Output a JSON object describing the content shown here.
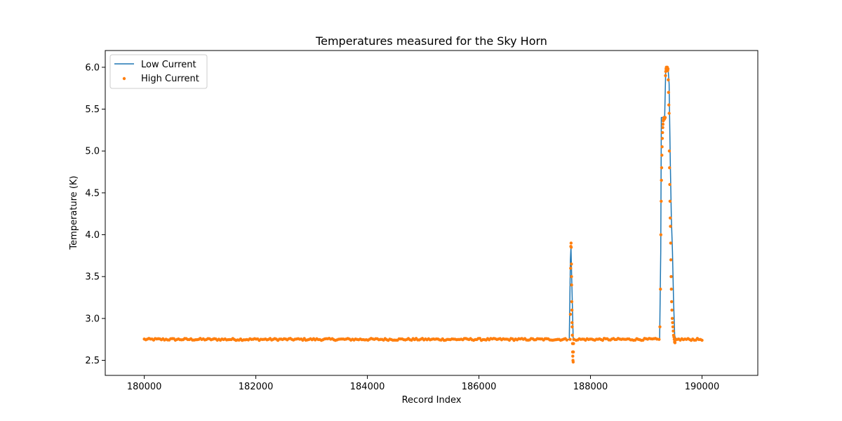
{
  "chart_data": {
    "type": "line",
    "title": "Temperatures measured for the Sky Horn",
    "xlabel": "Record Index",
    "ylabel": "Temperature (K)",
    "xlim": [
      179300,
      191000
    ],
    "ylim": [
      2.32,
      6.2
    ],
    "xticks": [
      180000,
      182000,
      184000,
      186000,
      188000,
      190000
    ],
    "yticks": [
      2.5,
      3.0,
      3.5,
      4.0,
      4.5,
      5.0,
      5.5,
      6.0
    ],
    "xtick_labels": [
      "180000",
      "182000",
      "184000",
      "186000",
      "188000",
      "190000"
    ],
    "ytick_labels": [
      "2.5",
      "3.0",
      "3.5",
      "4.0",
      "4.5",
      "5.0",
      "5.5",
      "6.0"
    ],
    "grid": false,
    "legend_position": "top-left",
    "series": [
      {
        "name": "Low Current",
        "kind": "line",
        "color": "#1f77b4",
        "x": [
          180000,
          187620,
          187640,
          187650,
          187670,
          187690,
          187700,
          189240,
          189260,
          189270,
          189290,
          189330,
          189350,
          189370,
          189390,
          189410,
          189430,
          189450,
          189470,
          189490,
          189510,
          189530,
          190000
        ],
        "y": [
          2.75,
          2.75,
          3.7,
          3.85,
          3.3,
          2.75,
          2.75,
          2.75,
          3.8,
          5.4,
          5.4,
          5.4,
          6.0,
          6.0,
          6.0,
          5.8,
          4.9,
          4.2,
          3.8,
          3.2,
          2.8,
          2.75,
          2.75
        ]
      },
      {
        "name": "High Current",
        "kind": "scatter",
        "color": "#ff7f0e",
        "marker_radius": 2.2,
        "baseline": {
          "x_start": 180000,
          "x_end": 190000,
          "y": 2.75,
          "count": 360,
          "jitter": 0.012
        },
        "x": [
          187635,
          187640,
          187645,
          187648,
          187652,
          187655,
          187658,
          187660,
          187662,
          187665,
          187668,
          187670,
          187672,
          187675,
          187678,
          187680,
          187683,
          187686,
          187690,
          187693,
          187696,
          187700,
          187705,
          189230,
          189245,
          189255,
          189262,
          189268,
          189272,
          189276,
          189280,
          189284,
          189288,
          189292,
          189296,
          189300,
          189305,
          189310,
          189318,
          189325,
          189332,
          189340,
          189345,
          189350,
          189355,
          189360,
          189366,
          189372,
          189378,
          189384,
          189390,
          189395,
          189400,
          189405,
          189410,
          189414,
          189418,
          189422,
          189426,
          189430,
          189434,
          189438,
          189442,
          189446,
          189450,
          189455,
          189460,
          189466,
          189472,
          189478,
          189484,
          189490,
          189496,
          189502,
          189508,
          189515,
          189522,
          189530,
          189540,
          189560
        ],
        "y": [
          2.75,
          3.05,
          3.6,
          3.86,
          3.9,
          3.85,
          3.65,
          3.5,
          3.4,
          3.2,
          3.1,
          2.95,
          2.9,
          2.8,
          2.7,
          2.6,
          2.55,
          2.5,
          2.48,
          2.6,
          2.7,
          2.75,
          2.75,
          2.75,
          2.9,
          3.35,
          4.0,
          4.4,
          4.65,
          4.8,
          4.95,
          5.05,
          5.15,
          5.22,
          5.28,
          5.32,
          5.36,
          5.38,
          5.4,
          5.38,
          5.39,
          5.4,
          5.9,
          5.95,
          5.98,
          6.0,
          5.97,
          5.99,
          6.0,
          5.96,
          5.98,
          5.85,
          5.7,
          5.55,
          5.45,
          5.0,
          4.8,
          4.6,
          4.4,
          4.2,
          4.1,
          3.9,
          3.7,
          3.5,
          3.35,
          3.2,
          3.1,
          3.0,
          2.95,
          2.9,
          2.85,
          2.8,
          2.78,
          2.75,
          2.72,
          2.71,
          2.74,
          2.75,
          2.75,
          2.75
        ]
      }
    ]
  }
}
